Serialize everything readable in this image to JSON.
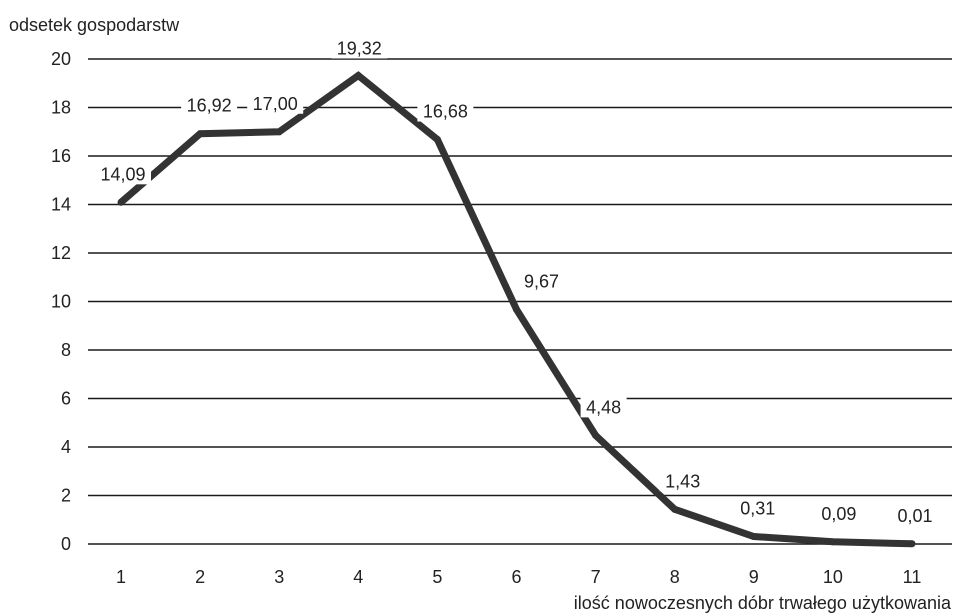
{
  "chart_data": {
    "type": "line",
    "ylabel": "odsetek gospodarstw",
    "xlabel": "ilość nowoczesnych dóbr trwałego użytkowania",
    "x": [
      1,
      2,
      3,
      4,
      5,
      6,
      7,
      8,
      9,
      10,
      11
    ],
    "series": [
      {
        "values": [
          14.09,
          16.92,
          17.0,
          19.32,
          16.68,
          9.67,
          4.48,
          1.43,
          0.31,
          0.09,
          0.01
        ],
        "data_labels": [
          "14,09",
          "16,92",
          "17,00",
          "19,32",
          "16,68",
          "9,67",
          "4,48",
          "1,43",
          "0,31",
          "0,09",
          "0,01"
        ]
      }
    ],
    "ylim": [
      0,
      20
    ],
    "yticks": [
      0,
      2,
      4,
      6,
      8,
      10,
      12,
      14,
      16,
      18,
      20
    ],
    "xticks": [
      "1",
      "2",
      "3",
      "4",
      "5",
      "6",
      "7",
      "8",
      "9",
      "10",
      "11"
    ],
    "grid": "horizontal",
    "line_color": "#333333",
    "grid_color": "#1a1a1a"
  }
}
